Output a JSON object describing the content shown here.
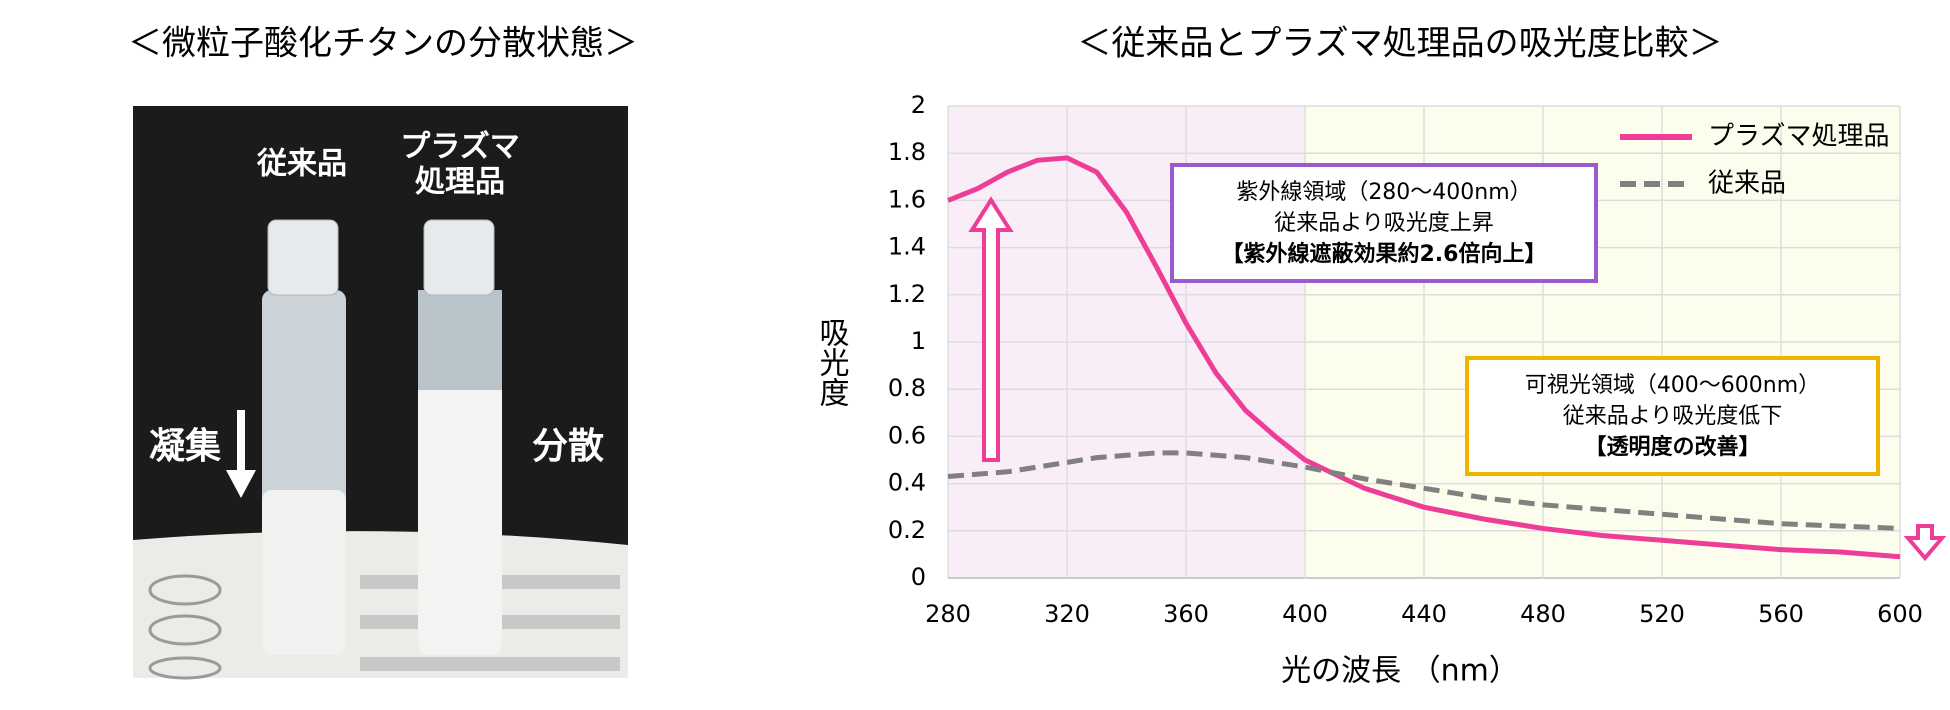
{
  "photo": {
    "title": "＜微粒子酸化チタンの分散状態＞",
    "left_vial": "従来品",
    "right_vial_lines": [
      "プラズマ",
      "処理品"
    ],
    "left_state": "凝集",
    "right_state": "分散"
  },
  "chart_data": {
    "type": "line",
    "title": "＜従来品とプラズマ処理品の吸光度比較＞",
    "x_label": "光の波長 （nm）",
    "y_label": "吸光度",
    "x": [
      280,
      290,
      300,
      310,
      320,
      330,
      340,
      350,
      360,
      370,
      380,
      390,
      400,
      420,
      440,
      460,
      480,
      500,
      520,
      540,
      560,
      580,
      600
    ],
    "series": [
      {
        "name": "プラズマ処理品",
        "color": "#ee3d96",
        "dashed": false,
        "values": [
          1.6,
          1.65,
          1.72,
          1.77,
          1.78,
          1.72,
          1.55,
          1.32,
          1.08,
          0.87,
          0.71,
          0.6,
          0.5,
          0.38,
          0.3,
          0.25,
          0.21,
          0.18,
          0.16,
          0.14,
          0.12,
          0.11,
          0.09
        ]
      },
      {
        "name": "従来品",
        "color": "#808080",
        "dashed": true,
        "values": [
          0.43,
          0.44,
          0.45,
          0.47,
          0.49,
          0.51,
          0.52,
          0.53,
          0.53,
          0.52,
          0.51,
          0.49,
          0.47,
          0.42,
          0.38,
          0.34,
          0.31,
          0.29,
          0.27,
          0.25,
          0.23,
          0.22,
          0.21
        ]
      }
    ],
    "xlim": [
      280,
      600
    ],
    "xticks": [
      280,
      320,
      360,
      400,
      440,
      480,
      520,
      560,
      600
    ],
    "ylim": [
      0,
      2
    ],
    "yticks": [
      0,
      0.2,
      0.4,
      0.6,
      0.8,
      1,
      1.2,
      1.4,
      1.6,
      1.8,
      2
    ],
    "grid": true,
    "legend": "top-right",
    "regions": [
      {
        "from": 280,
        "to": 400,
        "color": "#f9eef8"
      },
      {
        "from": 400,
        "to": 600,
        "color": "#fdfdee"
      }
    ],
    "annotations": [
      {
        "lines": [
          "紫外線領域（280～400nm）",
          "従来品より吸光度上昇",
          "【紫外線遮蔽効果約2.6倍向上】"
        ],
        "color": "#9b59d0"
      },
      {
        "lines": [
          "可視光領域（400～600nm）",
          "従来品より吸光度低下",
          "【透明度の改善】"
        ],
        "color": "#f0b400"
      }
    ]
  }
}
